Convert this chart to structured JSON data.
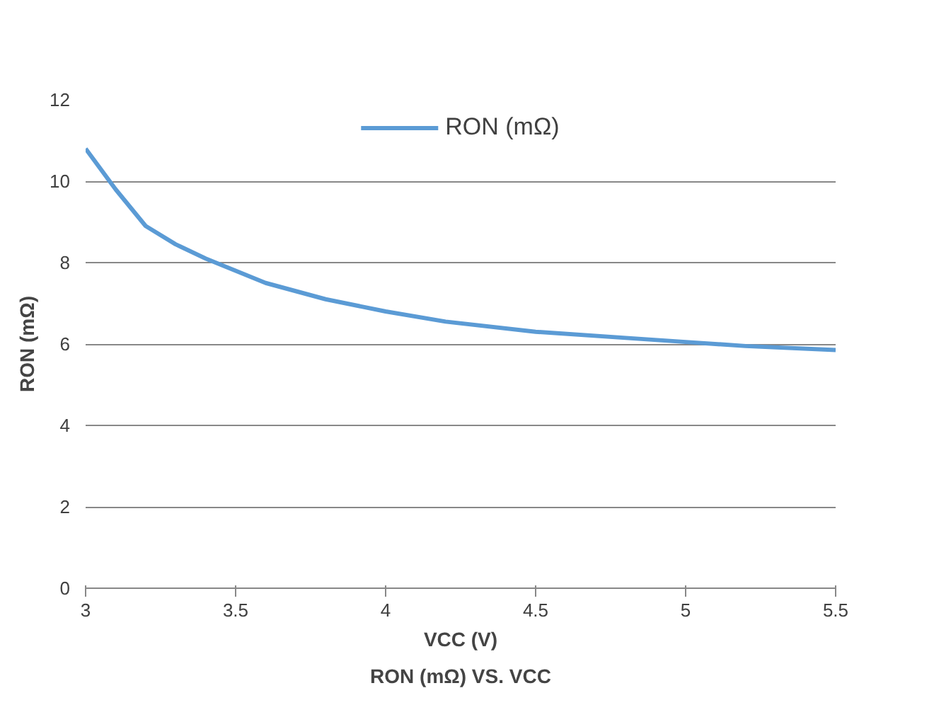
{
  "chart_data": {
    "type": "line",
    "title": "RON (mΩ) VS. VCC",
    "xlabel": "VCC (V)",
    "ylabel": "RON (mΩ)",
    "x": [
      3,
      3.1,
      3.2,
      3.3,
      3.4,
      3.5,
      3.6,
      3.8,
      4,
      4.2,
      4.5,
      4.8,
      5,
      5.2,
      5.5
    ],
    "series": [
      {
        "name": "RON (mΩ)",
        "color": "#5b9bd5",
        "values": [
          10.8,
          9.8,
          8.9,
          8.45,
          8.1,
          7.8,
          7.5,
          7.1,
          6.8,
          6.55,
          6.3,
          6.15,
          6.05,
          5.95,
          5.85
        ]
      }
    ],
    "xlim": [
      3,
      5.5
    ],
    "xticks": [
      3,
      3.5,
      4,
      4.5,
      5,
      5.5
    ],
    "ylim": [
      0,
      12
    ],
    "yticks": [
      0,
      2,
      4,
      6,
      8,
      10,
      12
    ],
    "grid": "y",
    "legend": "top",
    "marker": "none",
    "line_style": "solid"
  }
}
